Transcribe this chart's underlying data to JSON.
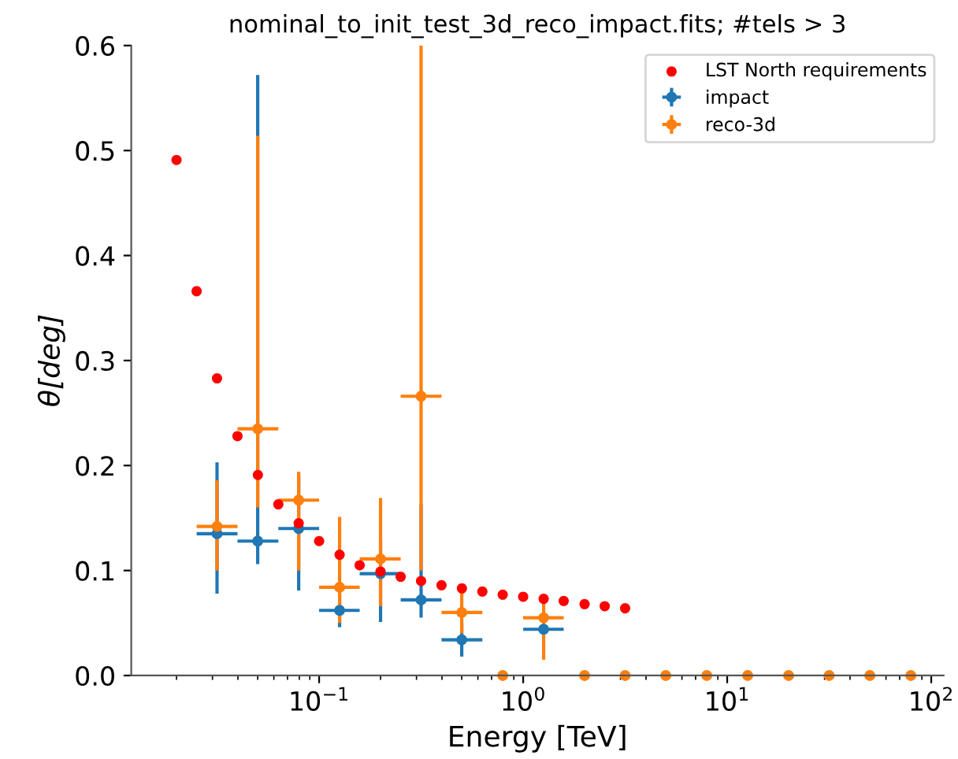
{
  "chart_data": {
    "type": "scatter",
    "title": "nominal_to_init_test_3d_reco_impact.fits; #tels > 3",
    "xlabel": "Energy [TeV]",
    "ylabel": "θ[deg]",
    "log": "x",
    "xlim": [
      0.012,
      115
    ],
    "ylim": [
      0,
      0.6
    ],
    "xticks": [
      {
        "value": 0.1,
        "label": "10$^{−1}$"
      },
      {
        "value": 1,
        "label": "10$^{0}$"
      },
      {
        "value": 10,
        "label": "10$^{1}$"
      },
      {
        "value": 100,
        "label": "10$^{2}$"
      }
    ],
    "yticks": [
      {
        "value": 0,
        "label": "0.0"
      },
      0.1,
      0.2,
      0.3,
      0.4,
      0.5,
      0.6
    ],
    "legend": "top right",
    "grid": false,
    "marker": "circle",
    "series": [
      {
        "name": "LST North requirements",
        "color": "#ff0000",
        "x": [
          0.02,
          0.0251,
          0.0316,
          0.0398,
          0.0501,
          0.0631,
          0.0794,
          0.1,
          0.126,
          0.158,
          0.2,
          0.251,
          0.316,
          0.398,
          0.501,
          0.631,
          0.794,
          1,
          1.26,
          1.58,
          2,
          2.51,
          3.16
        ],
        "values": [
          0.491,
          0.366,
          0.283,
          0.228,
          0.191,
          0.163,
          0.145,
          0.128,
          0.115,
          0.105,
          0.099,
          0.094,
          0.09,
          0.086,
          0.083,
          0.08,
          0.077,
          0.075,
          0.073,
          0.071,
          0.068,
          0.066,
          0.064
        ]
      },
      {
        "name": "impact",
        "color": "#1f77b4",
        "x": [
          0.0316,
          0.05,
          0.0794,
          0.126,
          0.2,
          0.316,
          0.5,
          1.26
        ],
        "values": [
          0.135,
          0.128,
          0.14,
          0.062,
          0.097,
          0.072,
          0.034,
          0.044
        ],
        "errors": [
          [
            0.078,
            0.203
          ],
          [
            0.106,
            0.572
          ],
          [
            0.081,
            0.19
          ],
          [
            0.046,
            0.085
          ],
          [
            0.051,
            0.13
          ],
          [
            0.055,
            0.163
          ],
          [
            0.018,
            0.05
          ],
          null
        ],
        "xerrors": [
          [
            0.0251,
            0.0398
          ],
          [
            0.0398,
            0.0631
          ],
          [
            0.0631,
            0.1
          ],
          [
            0.1,
            0.158
          ],
          [
            0.158,
            0.251
          ],
          [
            0.251,
            0.398
          ],
          [
            0.398,
            0.631
          ],
          [
            1,
            1.58
          ]
        ]
      },
      {
        "name": "reco-3d",
        "color": "#ff7f0e",
        "x": [
          0.0316,
          0.05,
          0.0794,
          0.126,
          0.2,
          0.316,
          0.5,
          0.794,
          1.26,
          2,
          3.16,
          5,
          7.94,
          12.6,
          20,
          31.6,
          50,
          79.4
        ],
        "values": [
          0.142,
          0.235,
          0.167,
          0.084,
          0.111,
          0.266,
          0.06,
          0,
          0.055,
          0,
          0,
          0,
          0,
          0,
          0,
          0,
          0,
          0
        ],
        "errors": [
          [
            0.1,
            0.186
          ],
          [
            0.16,
            0.514
          ],
          [
            0.1,
            0.194
          ],
          [
            0.05,
            0.151
          ],
          [
            0.066,
            0.169
          ],
          [
            0.1,
            0.6
          ],
          [
            0.04,
            0.086
          ],
          null,
          [
            0.015,
            0.072
          ],
          null,
          null,
          null,
          null,
          null,
          null,
          null,
          null,
          null
        ],
        "xerrors": [
          [
            0.0251,
            0.0398
          ],
          [
            0.0398,
            0.0631
          ],
          [
            0.0631,
            0.1
          ],
          [
            0.1,
            0.158
          ],
          [
            0.158,
            0.251
          ],
          [
            0.251,
            0.398
          ],
          [
            0.398,
            0.631
          ],
          null,
          [
            1,
            1.58
          ],
          null,
          null,
          null,
          null,
          null,
          null,
          null,
          null,
          null
        ]
      }
    ]
  }
}
